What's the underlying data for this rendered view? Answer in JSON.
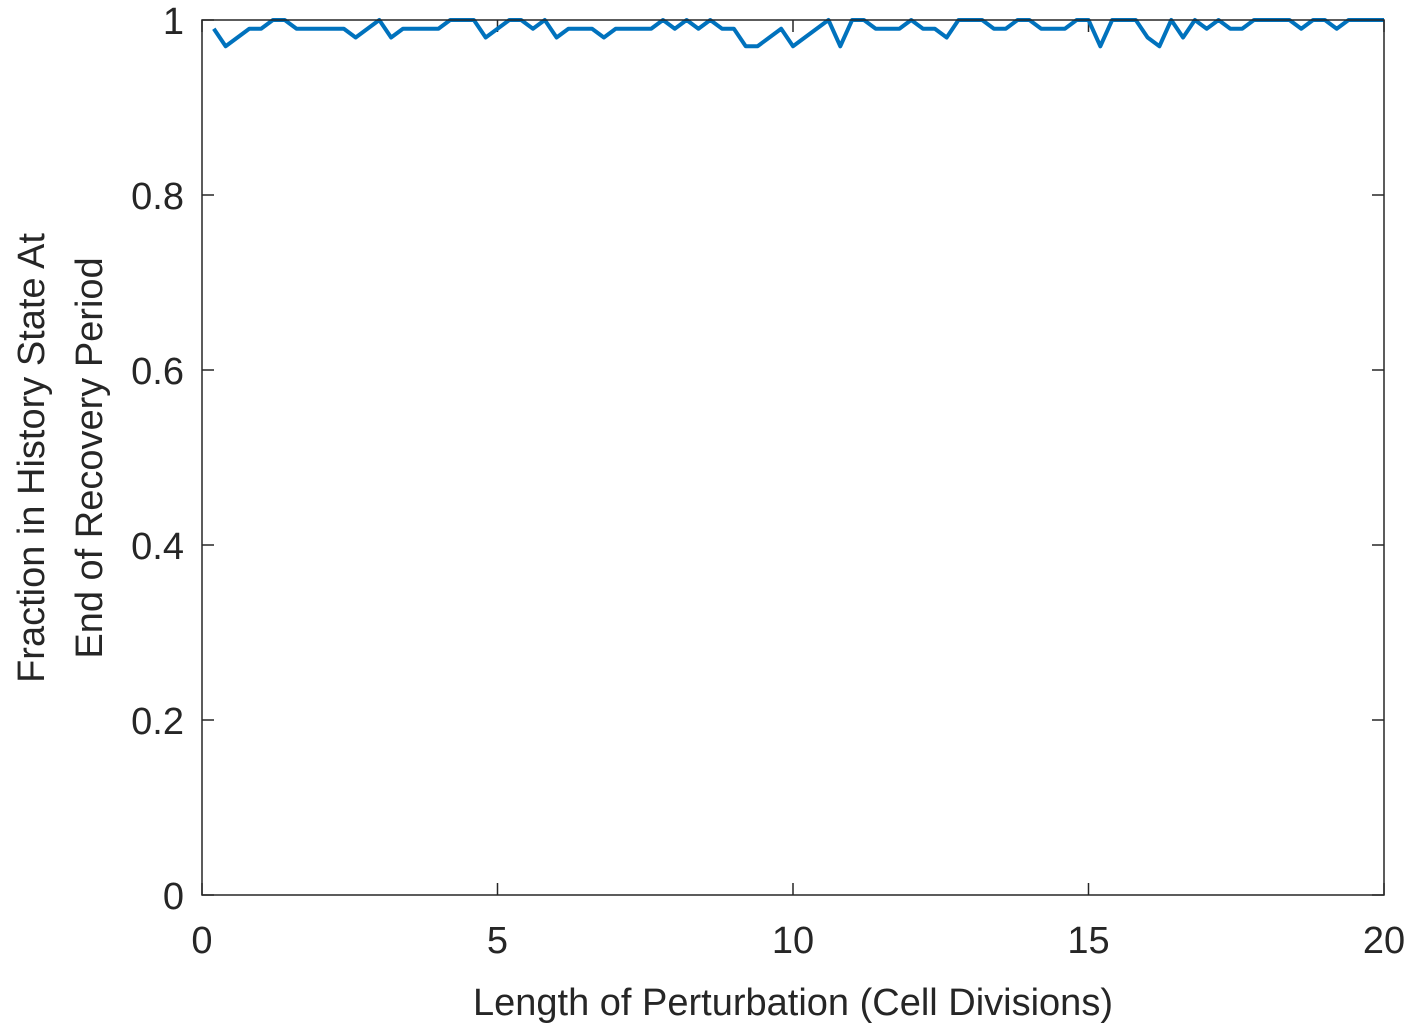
{
  "chart_data": {
    "type": "line",
    "title": "",
    "xlabel": "Length of Perturbation (Cell Divisions)",
    "ylabel_lines": [
      "Fraction in History State At",
      "End of Recovery Period"
    ],
    "xlim": [
      0,
      20
    ],
    "ylim": [
      0,
      1
    ],
    "x_ticks": [
      0,
      5,
      10,
      15,
      20
    ],
    "x_tick_labels": [
      "0",
      "5",
      "10",
      "15",
      "20"
    ],
    "y_ticks": [
      0,
      0.2,
      0.4,
      0.6,
      0.8,
      1
    ],
    "y_tick_labels": [
      "0",
      "0.2",
      "0.4",
      "0.6",
      "0.8",
      "1"
    ],
    "grid": false,
    "line_color": "#0072BD",
    "axis_color": "#262626",
    "series": [
      {
        "x": [
          0.2,
          0.4,
          0.6,
          0.8,
          1.0,
          1.2,
          1.4,
          1.6,
          1.8,
          2.0,
          2.2,
          2.4,
          2.6,
          2.8,
          3.0,
          3.2,
          3.4,
          3.6,
          3.8,
          4.0,
          4.2,
          4.4,
          4.6,
          4.8,
          5.0,
          5.2,
          5.4,
          5.6,
          5.8,
          6.0,
          6.2,
          6.4,
          6.6,
          6.8,
          7.0,
          7.2,
          7.4,
          7.6,
          7.8,
          8.0,
          8.2,
          8.4,
          8.6,
          8.8,
          9.0,
          9.2,
          9.4,
          9.6,
          9.8,
          10.0,
          10.2,
          10.4,
          10.6,
          10.8,
          11.0,
          11.2,
          11.4,
          11.6,
          11.8,
          12.0,
          12.2,
          12.4,
          12.6,
          12.8,
          13.0,
          13.2,
          13.4,
          13.6,
          13.8,
          14.0,
          14.2,
          14.4,
          14.6,
          14.8,
          15.0,
          15.2,
          15.4,
          15.6,
          15.8,
          16.0,
          16.2,
          16.4,
          16.6,
          16.8,
          17.0,
          17.2,
          17.4,
          17.6,
          17.8,
          18.0,
          18.2,
          18.4,
          18.6,
          18.8,
          19.0,
          19.2,
          19.4,
          19.6,
          19.8,
          20.0
        ],
        "y": [
          0.99,
          0.97,
          0.98,
          0.99,
          0.99,
          1.0,
          1.0,
          0.99,
          0.99,
          0.99,
          0.99,
          0.99,
          0.98,
          0.99,
          1.0,
          0.98,
          0.99,
          0.99,
          0.99,
          0.99,
          1.0,
          1.0,
          1.0,
          0.98,
          0.99,
          1.0,
          1.0,
          0.99,
          1.0,
          0.98,
          0.99,
          0.99,
          0.99,
          0.98,
          0.99,
          0.99,
          0.99,
          0.99,
          1.0,
          0.99,
          1.0,
          0.99,
          1.0,
          0.99,
          0.99,
          0.97,
          0.97,
          0.98,
          0.99,
          0.97,
          0.98,
          0.99,
          1.0,
          0.97,
          1.0,
          1.0,
          0.99,
          0.99,
          0.99,
          1.0,
          0.99,
          0.99,
          0.98,
          1.0,
          1.0,
          1.0,
          0.99,
          0.99,
          1.0,
          1.0,
          0.99,
          0.99,
          0.99,
          1.0,
          1.0,
          0.97,
          1.0,
          1.0,
          1.0,
          0.98,
          0.97,
          1.0,
          0.98,
          1.0,
          0.99,
          1.0,
          0.99,
          0.99,
          1.0,
          1.0,
          1.0,
          1.0,
          0.99,
          1.0,
          1.0,
          0.99,
          1.0,
          1.0,
          1.0,
          1.0
        ]
      }
    ]
  }
}
